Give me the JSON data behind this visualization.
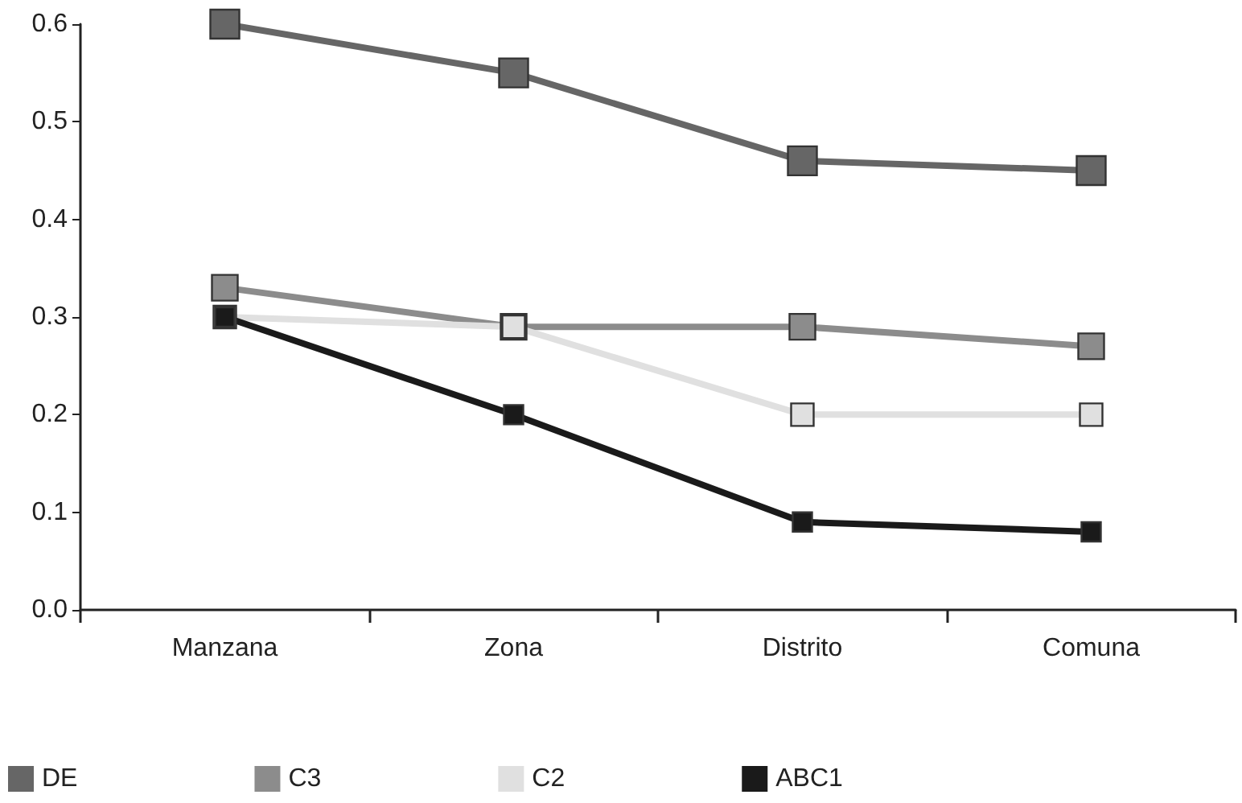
{
  "chart_data": {
    "type": "line",
    "categories": [
      "Manzana",
      "Zona",
      "Distrito",
      "Comuna"
    ],
    "series": [
      {
        "name": "DE",
        "color": "#666666",
        "values": [
          0.6,
          0.55,
          0.46,
          0.45
        ]
      },
      {
        "name": "C3",
        "color": "#8c8c8c",
        "values": [
          0.33,
          0.29,
          0.29,
          0.27
        ]
      },
      {
        "name": "C2",
        "color": "#e0e0e0",
        "values": [
          0.3,
          0.29,
          0.2,
          0.2
        ]
      },
      {
        "name": "ABC1",
        "color": "#1a1a1a",
        "values": [
          0.3,
          0.2,
          0.09,
          0.08
        ]
      }
    ],
    "ylim": [
      0,
      0.6
    ],
    "yticks": [
      {
        "value": 0,
        "label": "0.0"
      },
      {
        "value": 0.1,
        "label": "0.1"
      },
      {
        "value": 0.2,
        "label": "0.2"
      },
      {
        "value": 0.3,
        "label": "0.3"
      },
      {
        "value": 0.4,
        "label": "0.4"
      },
      {
        "value": 0.5,
        "label": "0.5"
      },
      {
        "value": 0.6,
        "label": "0.6"
      }
    ],
    "grid": false,
    "legend": "bottom left",
    "marker": "square",
    "line_style": "solid"
  }
}
